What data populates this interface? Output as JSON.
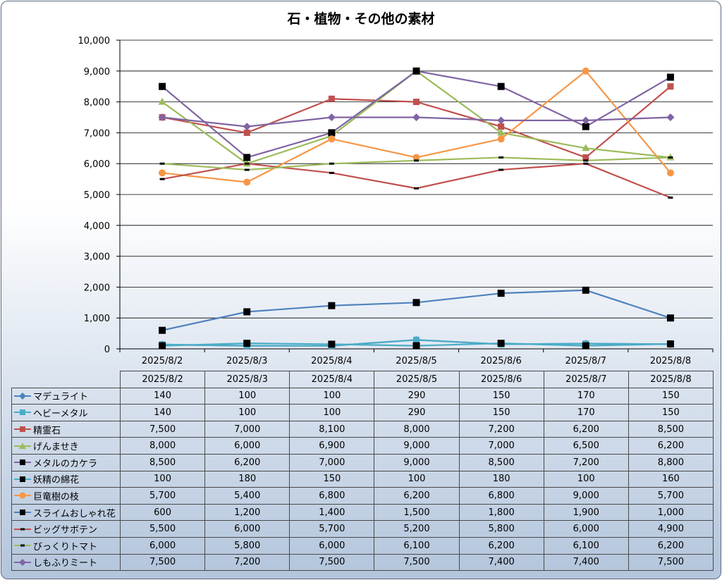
{
  "chart_data": {
    "type": "line",
    "title": "石・植物・その他の素材",
    "categories": [
      "2025/8/2",
      "2025/8/3",
      "2025/8/4",
      "2025/8/5",
      "2025/8/6",
      "2025/8/7",
      "2025/8/8"
    ],
    "ylim": [
      0,
      10000
    ],
    "yticks": [
      "0",
      "1,000",
      "2,000",
      "3,000",
      "4,000",
      "5,000",
      "6,000",
      "7,000",
      "8,000",
      "9,000",
      "10,000"
    ],
    "grid": true,
    "legend": "data-table",
    "series": [
      {
        "name": "マデュライト",
        "color": "#4f81bd",
        "marker": "diamond",
        "values": [
          140,
          100,
          100,
          290,
          150,
          170,
          150
        ],
        "labels": [
          "140",
          "100",
          "100",
          "290",
          "150",
          "170",
          "150"
        ]
      },
      {
        "name": "ヘビーメタル",
        "color": "#4bacc6",
        "marker": "square",
        "values": [
          140,
          100,
          100,
          290,
          150,
          170,
          150
        ],
        "labels": [
          "140",
          "100",
          "100",
          "290",
          "150",
          "170",
          "150"
        ]
      },
      {
        "name": "精霊石",
        "color": "#c0504d",
        "marker": "square",
        "values": [
          7500,
          7000,
          8100,
          8000,
          7200,
          6200,
          8500
        ],
        "labels": [
          "7,500",
          "7,000",
          "8,100",
          "8,000",
          "7,200",
          "6,200",
          "8,500"
        ]
      },
      {
        "name": "げんませき",
        "color": "#9bbb59",
        "marker": "triangle",
        "values": [
          8000,
          6000,
          6900,
          9000,
          7000,
          6500,
          6200
        ],
        "labels": [
          "8,000",
          "6,000",
          "6,900",
          "9,000",
          "7,000",
          "6,500",
          "6,200"
        ]
      },
      {
        "name": "メタルのカケラ",
        "color": "#8064a2",
        "marker": "blacksquare",
        "values": [
          8500,
          6200,
          7000,
          9000,
          8500,
          7200,
          8800
        ],
        "labels": [
          "8,500",
          "6,200",
          "7,000",
          "9,000",
          "8,500",
          "7,200",
          "8,800"
        ]
      },
      {
        "name": "妖精の綿花",
        "color": "#4bacc6",
        "marker": "blacksquare",
        "values": [
          100,
          180,
          150,
          100,
          180,
          100,
          160
        ],
        "labels": [
          "100",
          "180",
          "150",
          "100",
          "180",
          "100",
          "160"
        ]
      },
      {
        "name": "巨竜樹の枝",
        "color": "#f79646",
        "marker": "circle",
        "values": [
          5700,
          5400,
          6800,
          6200,
          6800,
          9000,
          5700
        ],
        "labels": [
          "5,700",
          "5,400",
          "6,800",
          "6,200",
          "6,800",
          "9,000",
          "5,700"
        ]
      },
      {
        "name": "スライムおしゃれ花",
        "color": "#4f81bd",
        "marker": "blacksquare",
        "values": [
          600,
          1200,
          1400,
          1500,
          1800,
          1900,
          1000
        ],
        "labels": [
          "600",
          "1,200",
          "1,400",
          "1,500",
          "1,800",
          "1,900",
          "1,000"
        ]
      },
      {
        "name": "ビッグサボテン",
        "color": "#c0504d",
        "marker": "dash",
        "values": [
          5500,
          6000,
          5700,
          5200,
          5800,
          6000,
          4900
        ],
        "labels": [
          "5,500",
          "6,000",
          "5,700",
          "5,200",
          "5,800",
          "6,000",
          "4,900"
        ]
      },
      {
        "name": "びっくりトマト",
        "color": "#9bbb59",
        "marker": "dash",
        "values": [
          6000,
          5800,
          6000,
          6100,
          6200,
          6100,
          6200
        ],
        "labels": [
          "6,000",
          "5,800",
          "6,000",
          "6,100",
          "6,200",
          "6,100",
          "6,200"
        ]
      },
      {
        "name": "しもふりミート",
        "color": "#8064a2",
        "marker": "diamond",
        "values": [
          7500,
          7200,
          7500,
          7500,
          7400,
          7400,
          7500
        ],
        "labels": [
          "7,500",
          "7,200",
          "7,500",
          "7,500",
          "7,400",
          "7,400",
          "7,500"
        ]
      }
    ]
  }
}
